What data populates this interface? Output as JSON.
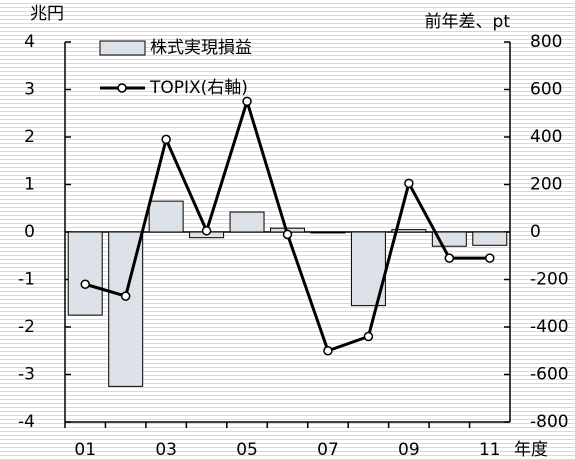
{
  "chart_data": {
    "type": "bar-line",
    "y_label": "兆円",
    "y2_label": "前年差、pt",
    "x_label": "年度",
    "categories": [
      "01",
      null,
      "03",
      null,
      "05",
      null,
      "07",
      null,
      "09",
      null,
      "11"
    ],
    "series": [
      {
        "name": "株式実現損益",
        "type": "bar",
        "color": "#dde2e8",
        "values": [
          -1.75,
          -3.25,
          0.65,
          -0.12,
          0.42,
          0.08,
          -0.02,
          -1.55,
          0.05,
          -0.3,
          -0.28
        ]
      },
      {
        "name": "TOPIX(右軸)",
        "type": "line",
        "axis": "y2",
        "color": "#000000",
        "values": [
          -220,
          -270,
          390,
          5,
          550,
          -10,
          -500,
          -440,
          205,
          -110,
          -110
        ]
      }
    ],
    "ylim": [
      -4,
      4
    ],
    "yticks": [
      -4,
      -3,
      -2,
      -1,
      0,
      1,
      2,
      3,
      4
    ],
    "y2lim": [
      -800,
      800
    ],
    "y2ticks": [
      -800,
      -600,
      -400,
      -200,
      0,
      200,
      400,
      600,
      800
    ]
  }
}
